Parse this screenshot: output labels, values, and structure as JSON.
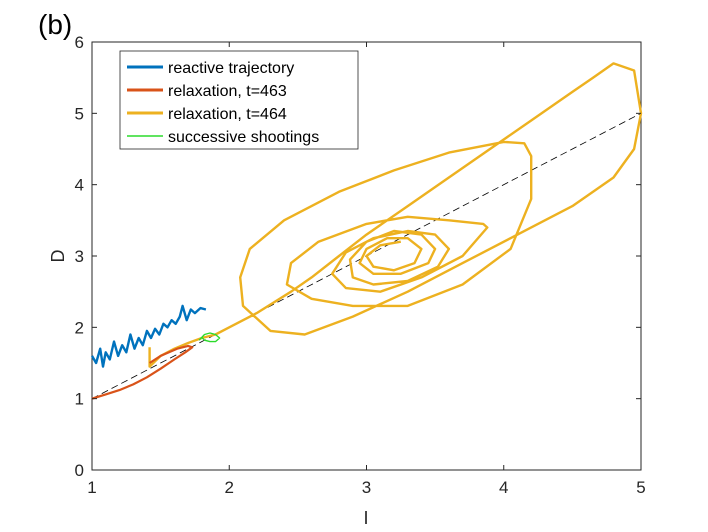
{
  "panel_label": "(b)",
  "chart_data": {
    "type": "line",
    "title": "",
    "xlabel": "I",
    "ylabel": "D",
    "xlim": [
      1,
      5
    ],
    "ylim": [
      0,
      6
    ],
    "xticks": [
      "1",
      "2",
      "3",
      "4",
      "5"
    ],
    "yticks": [
      "0",
      "1",
      "2",
      "3",
      "4",
      "5",
      "6"
    ],
    "grid": false,
    "legend_position": "top-left",
    "reference_line": {
      "style": "dashed",
      "color": "#000000",
      "x": [
        1,
        5
      ],
      "y": [
        1,
        5
      ]
    },
    "series": [
      {
        "name": "reactive trajectory",
        "color": "#0072BD",
        "x": [
          1.0,
          1.03,
          1.06,
          1.08,
          1.1,
          1.13,
          1.16,
          1.19,
          1.22,
          1.25,
          1.28,
          1.31,
          1.34,
          1.37,
          1.4,
          1.43,
          1.46,
          1.49,
          1.52,
          1.55,
          1.58,
          1.61,
          1.64,
          1.66,
          1.69,
          1.72,
          1.75,
          1.79,
          1.83
        ],
        "y": [
          1.6,
          1.5,
          1.7,
          1.45,
          1.65,
          1.55,
          1.8,
          1.6,
          1.75,
          1.65,
          1.9,
          1.7,
          1.85,
          1.75,
          1.95,
          1.85,
          1.98,
          1.9,
          2.05,
          2.0,
          2.1,
          2.05,
          2.15,
          2.3,
          2.1,
          2.25,
          2.2,
          2.27,
          2.25
        ]
      },
      {
        "name": "relaxation, t=463",
        "color": "#D95319",
        "x": [
          1.0,
          1.1,
          1.2,
          1.3,
          1.4,
          1.5,
          1.6,
          1.68,
          1.73,
          1.7,
          1.62,
          1.5,
          1.42
        ],
        "y": [
          1.0,
          1.06,
          1.12,
          1.2,
          1.3,
          1.42,
          1.55,
          1.65,
          1.72,
          1.74,
          1.7,
          1.6,
          1.5
        ]
      },
      {
        "name": "relaxation, t=464",
        "color": "#EDB120",
        "x": [
          1.42,
          1.42,
          1.5,
          1.6,
          1.7,
          1.8,
          1.9,
          2.0,
          2.2,
          2.45,
          2.6,
          2.8,
          3.0,
          3.3,
          3.6,
          3.9,
          4.2,
          4.5,
          4.65,
          4.8,
          4.95,
          5.0,
          4.95,
          4.8,
          4.5,
          4.1,
          3.7,
          3.3,
          2.9,
          2.55,
          2.3,
          2.1,
          2.08,
          2.15,
          2.4,
          2.8,
          3.2,
          3.6,
          4.0,
          4.15,
          4.2,
          4.2,
          4.05,
          3.7,
          3.3,
          2.9,
          2.6,
          2.42,
          2.45,
          2.65,
          3.0,
          3.3,
          3.6,
          3.85,
          3.88,
          3.7,
          3.4,
          3.1,
          2.85,
          2.75,
          2.85,
          3.05,
          3.3,
          3.5,
          3.6,
          3.52,
          3.3,
          3.05,
          2.9,
          2.88,
          3.0,
          3.2,
          3.4,
          3.5,
          3.45,
          3.25,
          3.05,
          2.95,
          3.0,
          3.15,
          3.3,
          3.4,
          3.35,
          3.2,
          3.05,
          3.0,
          3.1,
          3.25
        ],
        "y": [
          1.72,
          1.45,
          1.6,
          1.7,
          1.78,
          1.85,
          1.9,
          2.0,
          2.2,
          2.5,
          2.7,
          3.0,
          3.3,
          3.7,
          4.1,
          4.5,
          4.9,
          5.3,
          5.5,
          5.7,
          5.6,
          5.0,
          4.5,
          4.1,
          3.7,
          3.3,
          2.9,
          2.5,
          2.15,
          1.9,
          1.95,
          2.3,
          2.7,
          3.1,
          3.5,
          3.9,
          4.2,
          4.45,
          4.6,
          4.58,
          4.4,
          3.8,
          3.1,
          2.6,
          2.3,
          2.3,
          2.4,
          2.6,
          2.9,
          3.2,
          3.45,
          3.55,
          3.5,
          3.45,
          3.4,
          3.0,
          2.7,
          2.5,
          2.55,
          2.75,
          3.05,
          3.25,
          3.35,
          3.3,
          3.1,
          2.85,
          2.65,
          2.6,
          2.7,
          2.95,
          3.2,
          3.35,
          3.3,
          3.1,
          2.9,
          2.75,
          2.75,
          2.9,
          3.1,
          3.25,
          3.25,
          3.1,
          2.9,
          2.8,
          2.85,
          3.0,
          3.15,
          3.2
        ]
      },
      {
        "name": "successive shootings",
        "color": "#2BDB2B",
        "x": [
          1.78,
          1.82,
          1.86,
          1.9,
          1.93,
          1.9,
          1.86,
          1.82,
          1.8
        ],
        "y": [
          1.82,
          1.9,
          1.92,
          1.9,
          1.85,
          1.8,
          1.8,
          1.82,
          1.86
        ]
      }
    ]
  }
}
